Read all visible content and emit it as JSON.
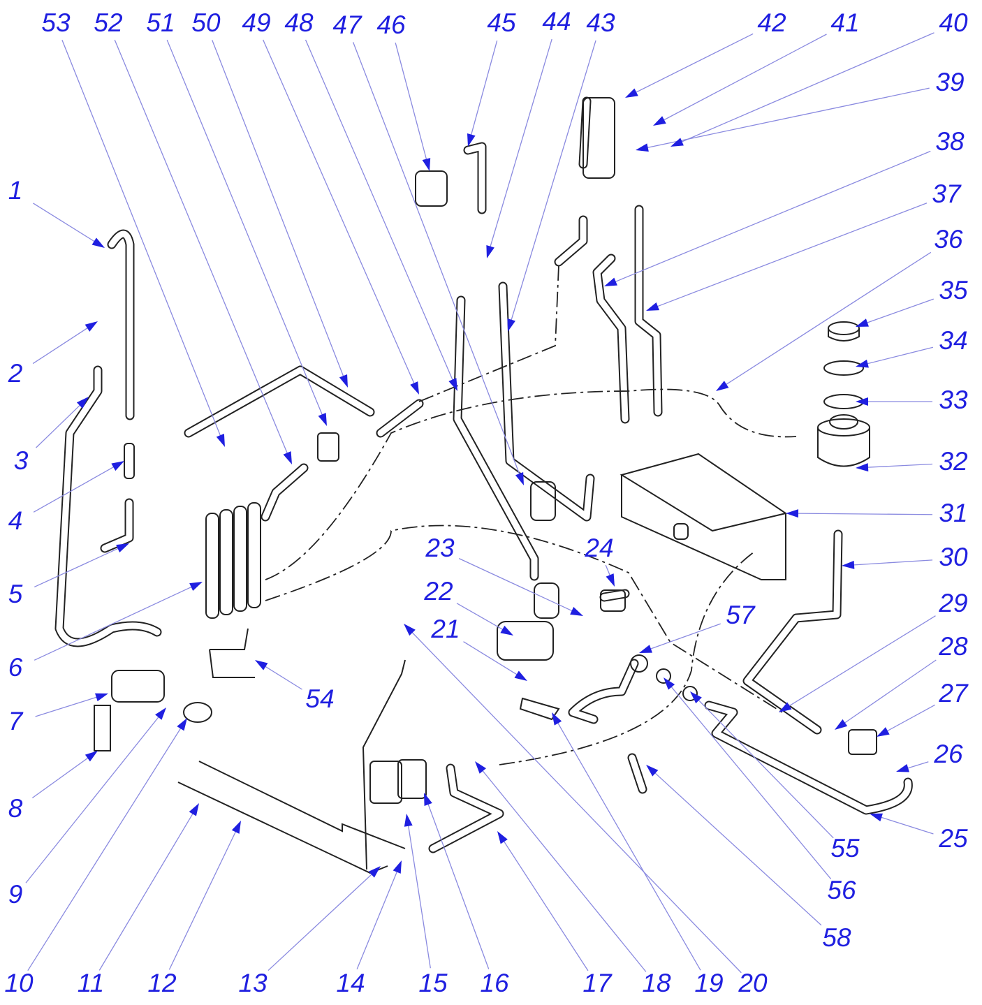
{
  "callouts": [
    {
      "label": "1"
    },
    {
      "label": "2"
    },
    {
      "label": "3"
    },
    {
      "label": "4"
    },
    {
      "label": "5"
    },
    {
      "label": "6"
    },
    {
      "label": "7"
    },
    {
      "label": "8"
    },
    {
      "label": "9"
    },
    {
      "label": "10"
    },
    {
      "label": "11"
    },
    {
      "label": "12"
    },
    {
      "label": "13"
    },
    {
      "label": "14"
    },
    {
      "label": "15"
    },
    {
      "label": "16"
    },
    {
      "label": "17"
    },
    {
      "label": "18"
    },
    {
      "label": "19"
    },
    {
      "label": "20"
    },
    {
      "label": "21"
    },
    {
      "label": "22"
    },
    {
      "label": "23"
    },
    {
      "label": "24"
    },
    {
      "label": "25"
    },
    {
      "label": "26"
    },
    {
      "label": "27"
    },
    {
      "label": "28"
    },
    {
      "label": "29"
    },
    {
      "label": "30"
    },
    {
      "label": "31"
    },
    {
      "label": "32"
    },
    {
      "label": "33"
    },
    {
      "label": "34"
    },
    {
      "label": "35"
    },
    {
      "label": "36"
    },
    {
      "label": "37"
    },
    {
      "label": "38"
    },
    {
      "label": "39"
    },
    {
      "label": "40"
    },
    {
      "label": "41"
    },
    {
      "label": "42"
    },
    {
      "label": "43"
    },
    {
      "label": "44"
    },
    {
      "label": "45"
    },
    {
      "label": "46"
    },
    {
      "label": "47"
    },
    {
      "label": "48"
    },
    {
      "label": "49"
    },
    {
      "label": "50"
    },
    {
      "label": "51"
    },
    {
      "label": "52"
    },
    {
      "label": "53"
    },
    {
      "label": "54"
    },
    {
      "label": "55"
    },
    {
      "label": "56"
    },
    {
      "label": "57"
    },
    {
      "label": "58"
    }
  ]
}
